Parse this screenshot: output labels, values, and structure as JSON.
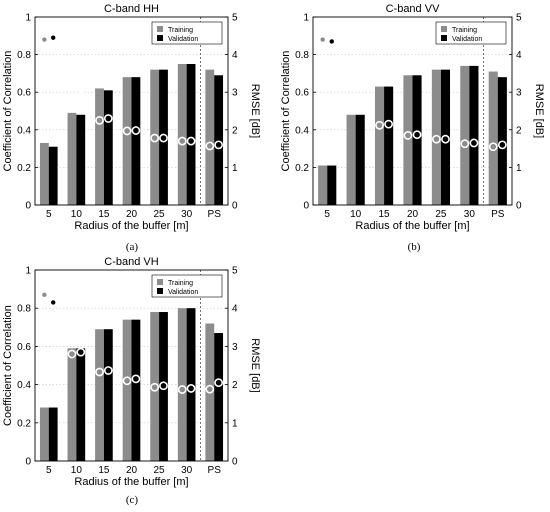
{
  "chart_data": [
    {
      "type": "bar",
      "caption": "(a)",
      "title": "C-band HH",
      "xlabel": "Radius of the buffer [m]",
      "ylabel": "Coefficient of Correlation",
      "y2label": "RMSE [dB]",
      "categories": [
        "5",
        "10",
        "15",
        "20",
        "25",
        "30",
        "PS"
      ],
      "ylim": [
        0,
        1
      ],
      "y2lim": [
        0,
        5
      ],
      "yticks": [
        "0",
        "0.2",
        "0.4",
        "0.6",
        "0.8",
        "1"
      ],
      "y2ticks": [
        "0",
        "1",
        "2",
        "3",
        "4",
        "5"
      ],
      "legend_position": "top-right",
      "series": [
        {
          "name": "Training",
          "color": "#8c8c8c",
          "values": [
            0.33,
            0.49,
            0.62,
            0.68,
            0.72,
            0.75,
            0.72
          ]
        },
        {
          "name": "Validation",
          "color": "#000000",
          "values": [
            0.31,
            0.48,
            0.61,
            0.68,
            0.72,
            0.75,
            0.69
          ]
        }
      ],
      "rmse_series": [
        {
          "name": "Training RMSE",
          "values": [
            4.4,
            2.8,
            2.25,
            1.97,
            1.78,
            1.7,
            1.57
          ]
        },
        {
          "name": "Validation RMSE",
          "values": [
            4.45,
            2.9,
            2.3,
            1.98,
            1.78,
            1.7,
            1.6
          ]
        }
      ]
    },
    {
      "type": "bar",
      "caption": "(b)",
      "title": "C-band VV",
      "xlabel": "Radius of the buffer [m]",
      "ylabel": "Coefficient of Correlation",
      "y2label": "RMSE [dB]",
      "categories": [
        "5",
        "10",
        "15",
        "20",
        "25",
        "30",
        "PS"
      ],
      "ylim": [
        0,
        1
      ],
      "y2lim": [
        0,
        5
      ],
      "yticks": [
        "0",
        "0.2",
        "0.4",
        "0.6",
        "0.8",
        "1"
      ],
      "y2ticks": [
        "0",
        "1",
        "2",
        "3",
        "4",
        "5"
      ],
      "legend_position": "top-right",
      "series": [
        {
          "name": "Training",
          "color": "#8c8c8c",
          "values": [
            0.21,
            0.48,
            0.63,
            0.69,
            0.72,
            0.74,
            0.71
          ]
        },
        {
          "name": "Validation",
          "color": "#000000",
          "values": [
            0.21,
            0.48,
            0.63,
            0.69,
            0.72,
            0.74,
            0.68
          ]
        }
      ],
      "rmse_series": [
        {
          "name": "Training RMSE",
          "values": [
            4.4,
            2.7,
            2.12,
            1.85,
            1.75,
            1.63,
            1.55
          ]
        },
        {
          "name": "Validation RMSE",
          "values": [
            4.35,
            2.75,
            2.15,
            1.87,
            1.75,
            1.65,
            1.6
          ]
        }
      ]
    },
    {
      "type": "bar",
      "caption": "(c)",
      "title": "C-band VH",
      "xlabel": "Radius of the buffer [m]",
      "ylabel": "Coefficient of Correlation",
      "y2label": "RMSE [dB]",
      "categories": [
        "5",
        "10",
        "15",
        "20",
        "25",
        "30",
        "PS"
      ],
      "ylim": [
        0,
        1
      ],
      "y2lim": [
        0,
        5
      ],
      "yticks": [
        "0",
        "0.2",
        "0.4",
        "0.6",
        "0.8",
        "1"
      ],
      "y2ticks": [
        "0",
        "1",
        "2",
        "3",
        "4",
        "5"
      ],
      "legend_position": "top-right",
      "series": [
        {
          "name": "Training",
          "color": "#8c8c8c",
          "values": [
            0.28,
            0.59,
            0.69,
            0.74,
            0.78,
            0.8,
            0.72
          ]
        },
        {
          "name": "Validation",
          "color": "#000000",
          "values": [
            0.28,
            0.59,
            0.69,
            0.74,
            0.78,
            0.8,
            0.67
          ]
        }
      ],
      "rmse_series": [
        {
          "name": "Training RMSE",
          "values": [
            4.35,
            2.8,
            2.33,
            2.1,
            1.93,
            1.87,
            1.88
          ]
        },
        {
          "name": "Validation RMSE",
          "values": [
            4.15,
            2.85,
            2.37,
            2.15,
            1.97,
            1.9,
            2.05
          ]
        }
      ]
    }
  ]
}
